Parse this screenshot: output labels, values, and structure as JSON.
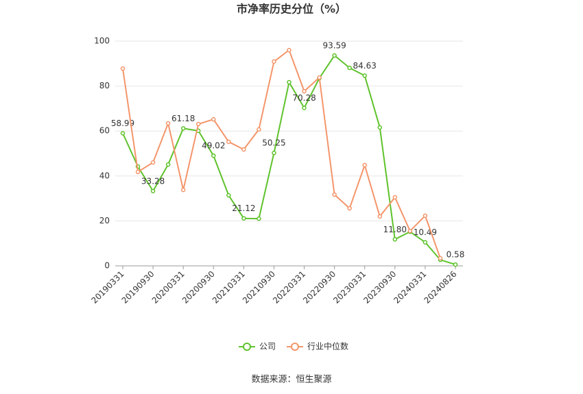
{
  "chart_data": {
    "type": "line",
    "title": "市净率历史分位（%）",
    "source": "数据来源：恒生聚源",
    "categories": [
      "20190331",
      null,
      "20190930",
      null,
      "20200331",
      null,
      "20200930",
      null,
      "20210331",
      null,
      "20210930",
      null,
      "20220331",
      null,
      "20220930",
      null,
      "20230331",
      null,
      "20230930",
      null,
      "20240331",
      null,
      "20240826"
    ],
    "series": [
      {
        "name": "公司",
        "color": "#5ec22b",
        "values": [
          58.99,
          44.2,
          33.28,
          45.1,
          61.18,
          60.1,
          49.02,
          31.4,
          21.12,
          21.0,
          50.25,
          81.7,
          70.28,
          83.5,
          93.59,
          88.1,
          84.63,
          61.6,
          11.8,
          15.2,
          10.49,
          2.7,
          0.58
        ],
        "value_labels": [
          "58.99",
          null,
          "33.28",
          null,
          "61.18",
          null,
          "49.02",
          null,
          "21.12",
          null,
          "50.25",
          null,
          "70.28",
          null,
          "93.59",
          null,
          "84.63",
          null,
          "11.80",
          null,
          "10.49",
          null,
          "0.58"
        ]
      },
      {
        "name": "行业中位数",
        "color": "#f4956a",
        "values": [
          87.8,
          41.8,
          46.0,
          63.4,
          33.8,
          63.1,
          65.2,
          55.2,
          51.8,
          60.7,
          90.9,
          96.0,
          77.7,
          83.8,
          31.7,
          25.6,
          44.8,
          22.0,
          30.5,
          15.5,
          22.3,
          3.4,
          null
        ]
      }
    ],
    "ylim": [
      0,
      100
    ],
    "yticks": [
      0,
      20,
      40,
      60,
      80,
      100
    ],
    "grid": true,
    "legend": "bottom"
  }
}
